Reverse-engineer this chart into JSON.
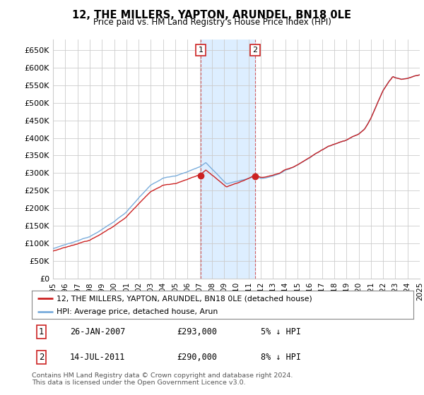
{
  "title": "12, THE MILLERS, YAPTON, ARUNDEL, BN18 0LE",
  "subtitle": "Price paid vs. HM Land Registry's House Price Index (HPI)",
  "ylim": [
    0,
    680000
  ],
  "yticks": [
    0,
    50000,
    100000,
    150000,
    200000,
    250000,
    300000,
    350000,
    400000,
    450000,
    500000,
    550000,
    600000,
    650000
  ],
  "ytick_labels": [
    "£0",
    "£50K",
    "£100K",
    "£150K",
    "£200K",
    "£250K",
    "£300K",
    "£350K",
    "£400K",
    "£450K",
    "£500K",
    "£550K",
    "£600K",
    "£650K"
  ],
  "hpi_color": "#7aaddc",
  "price_color": "#cc2222",
  "shade_color": "#ddeeff",
  "sale1_date": 2007.08,
  "sale1_price": 293000,
  "sale2_date": 2011.54,
  "sale2_price": 290000,
  "legend_label1": "12, THE MILLERS, YAPTON, ARUNDEL, BN18 0LE (detached house)",
  "legend_label2": "HPI: Average price, detached house, Arun",
  "table_row1": [
    "1",
    "26-JAN-2007",
    "£293,000",
    "5% ↓ HPI"
  ],
  "table_row2": [
    "2",
    "14-JUL-2011",
    "£290,000",
    "8% ↓ HPI"
  ],
  "footer": "Contains HM Land Registry data © Crown copyright and database right 2024.\nThis data is licensed under the Open Government Licence v3.0.",
  "background_color": "#ffffff",
  "grid_color": "#cccccc"
}
